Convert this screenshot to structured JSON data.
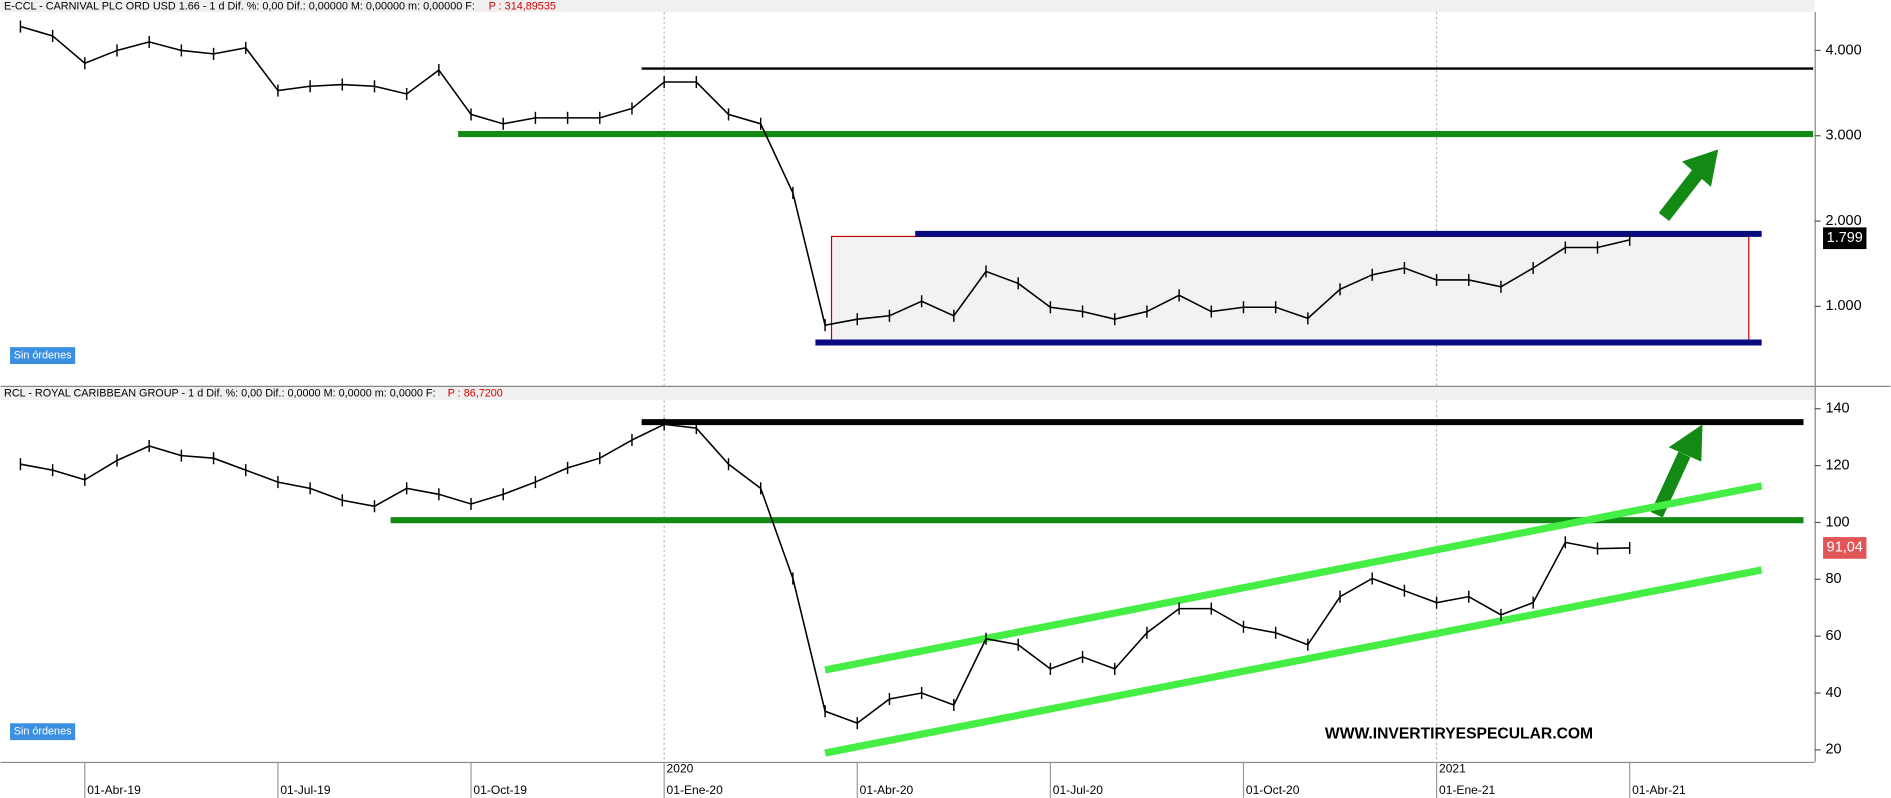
{
  "chart_data": [
    {
      "type": "line",
      "title": "E-CCL - CARNIVAL PLC ORD USD 1.66 - 1 d  Dif. %: 0,00  Dif.: 0,00000  M: 0,00000  m: 0,00000  F:",
      "subtitle": "P : 314,89535",
      "button": "Sin órdenes",
      "color": "#000000",
      "values": [
        4.28,
        4.17,
        3.85,
        4.0,
        4.1,
        4.0,
        3.96,
        4.03,
        3.53,
        3.58,
        3.6,
        3.58,
        3.49,
        3.77,
        3.25,
        3.14,
        3.21,
        3.21,
        3.21,
        3.32,
        3.63,
        3.63,
        3.25,
        3.14,
        2.33,
        0.78,
        0.85,
        0.89,
        1.06,
        0.89,
        1.41,
        1.27,
        0.99,
        0.94,
        0.85,
        0.94,
        1.13,
        0.94,
        0.99,
        0.99,
        0.86,
        1.2,
        1.37,
        1.45,
        1.31,
        1.31,
        1.23,
        1.45,
        1.69,
        1.69,
        1.78
      ],
      "ylim": [
        0.07,
        4.45
      ],
      "yticks": [
        {
          "value": 1,
          "label": "1.000"
        },
        {
          "value": 2,
          "label": "2.000"
        },
        {
          "value": 3,
          "label": "3.000"
        },
        {
          "value": 4,
          "label": "4.000"
        }
      ],
      "last_price": 1.799,
      "last_price_color": "#000000",
      "overlays": [
        {
          "kind": "box",
          "from": [
            25.2,
            1.82
          ],
          "to": [
            53.7,
            0.59
          ],
          "color": "#c00000"
        },
        {
          "kind": "line",
          "from": [
            19.3,
            3.788
          ],
          "to": [
            55.7,
            3.788
          ],
          "color": "#000000",
          "width": 2
        },
        {
          "kind": "line",
          "from": [
            13.6,
            3.02
          ],
          "to": [
            55.7,
            3.02
          ],
          "color": "#138a13",
          "width": 5
        },
        {
          "kind": "line",
          "from": [
            27.8,
            1.85
          ],
          "to": [
            54.1,
            1.85
          ],
          "color": "#0a0a80",
          "width": 5
        },
        {
          "kind": "line",
          "from": [
            24.7,
            0.577
          ],
          "to": [
            54.1,
            0.577
          ],
          "color": "#0a0a80",
          "width": 5
        }
      ]
    },
    {
      "type": "line",
      "title": "RCL - ROYAL CARIBBEAN GROUP - 1 d  Dif. %: 0,00  Dif.: 0,0000  M: 0,0000  m: 0,0000  F:",
      "subtitle": "P : 86,7200",
      "button": "Sin órdenes",
      "annotation": "WWW.INVERTIRYESPECULAR.COM",
      "color": "#000000",
      "categories": [
        null,
        null,
        "01-Abr-19",
        null,
        null,
        null,
        null,
        null,
        "01-Jul-19",
        null,
        null,
        null,
        null,
        null,
        "01-Oct-19",
        null,
        null,
        null,
        null,
        null,
        "01-Ene-20",
        null,
        null,
        null,
        null,
        null,
        "01-Abr-20",
        null,
        null,
        null,
        null,
        null,
        "01-Jul-20",
        null,
        null,
        null,
        null,
        null,
        "01-Oct-20",
        null,
        null,
        null,
        null,
        null,
        "01-Ene-21",
        null,
        null,
        null,
        null,
        null,
        "01-Abr-21"
      ],
      "year_categories": [
        null,
        null,
        null,
        null,
        null,
        null,
        null,
        null,
        null,
        null,
        null,
        null,
        null,
        null,
        null,
        null,
        null,
        null,
        null,
        null,
        "2020",
        null,
        null,
        null,
        null,
        null,
        null,
        null,
        null,
        null,
        null,
        null,
        null,
        null,
        null,
        null,
        null,
        null,
        null,
        null,
        null,
        null,
        null,
        null,
        "2021",
        null,
        null,
        null,
        null,
        null,
        null
      ],
      "values": [
        120.5,
        118.4,
        115,
        121.8,
        126.9,
        123.5,
        122.6,
        118.4,
        114.2,
        112,
        107.8,
        105.7,
        112,
        109.9,
        106.5,
        109.9,
        114.2,
        119.2,
        122.6,
        129,
        134.5,
        133.2,
        120.5,
        112,
        80.3,
        33.6,
        29.4,
        37.9,
        40,
        35.8,
        59.1,
        57,
        48.5,
        52.7,
        48.5,
        61.2,
        69.7,
        69.7,
        63.3,
        61.2,
        57,
        73.9,
        80.3,
        76,
        71.8,
        73.9,
        67.5,
        71.8,
        93,
        90.8,
        91.04
      ],
      "ylim": [
        15.8,
        143
      ],
      "yticks": [
        20,
        40,
        60,
        80,
        100,
        120,
        140
      ],
      "last_price": {
        "value": 91.04,
        "label": "91,04"
      },
      "last_price_color": "#e05555",
      "overlays": [
        {
          "kind": "line",
          "from": [
            19.3,
            135.3
          ],
          "to": [
            55.4,
            135.3
          ],
          "color": "#000000",
          "width": 5
        },
        {
          "kind": "line",
          "from": [
            11.5,
            100.8
          ],
          "to": [
            55.4,
            100.8
          ],
          "color": "#138a13",
          "width": 5
        },
        {
          "kind": "line",
          "from": [
            25.0,
            48.1
          ],
          "to": [
            54.1,
            112.9
          ],
          "color": "#44ee44",
          "width": 6
        },
        {
          "kind": "line",
          "from": [
            25.0,
            18.9
          ],
          "to": [
            54.1,
            83.3
          ],
          "color": "#44ee44",
          "width": 6
        }
      ]
    }
  ]
}
